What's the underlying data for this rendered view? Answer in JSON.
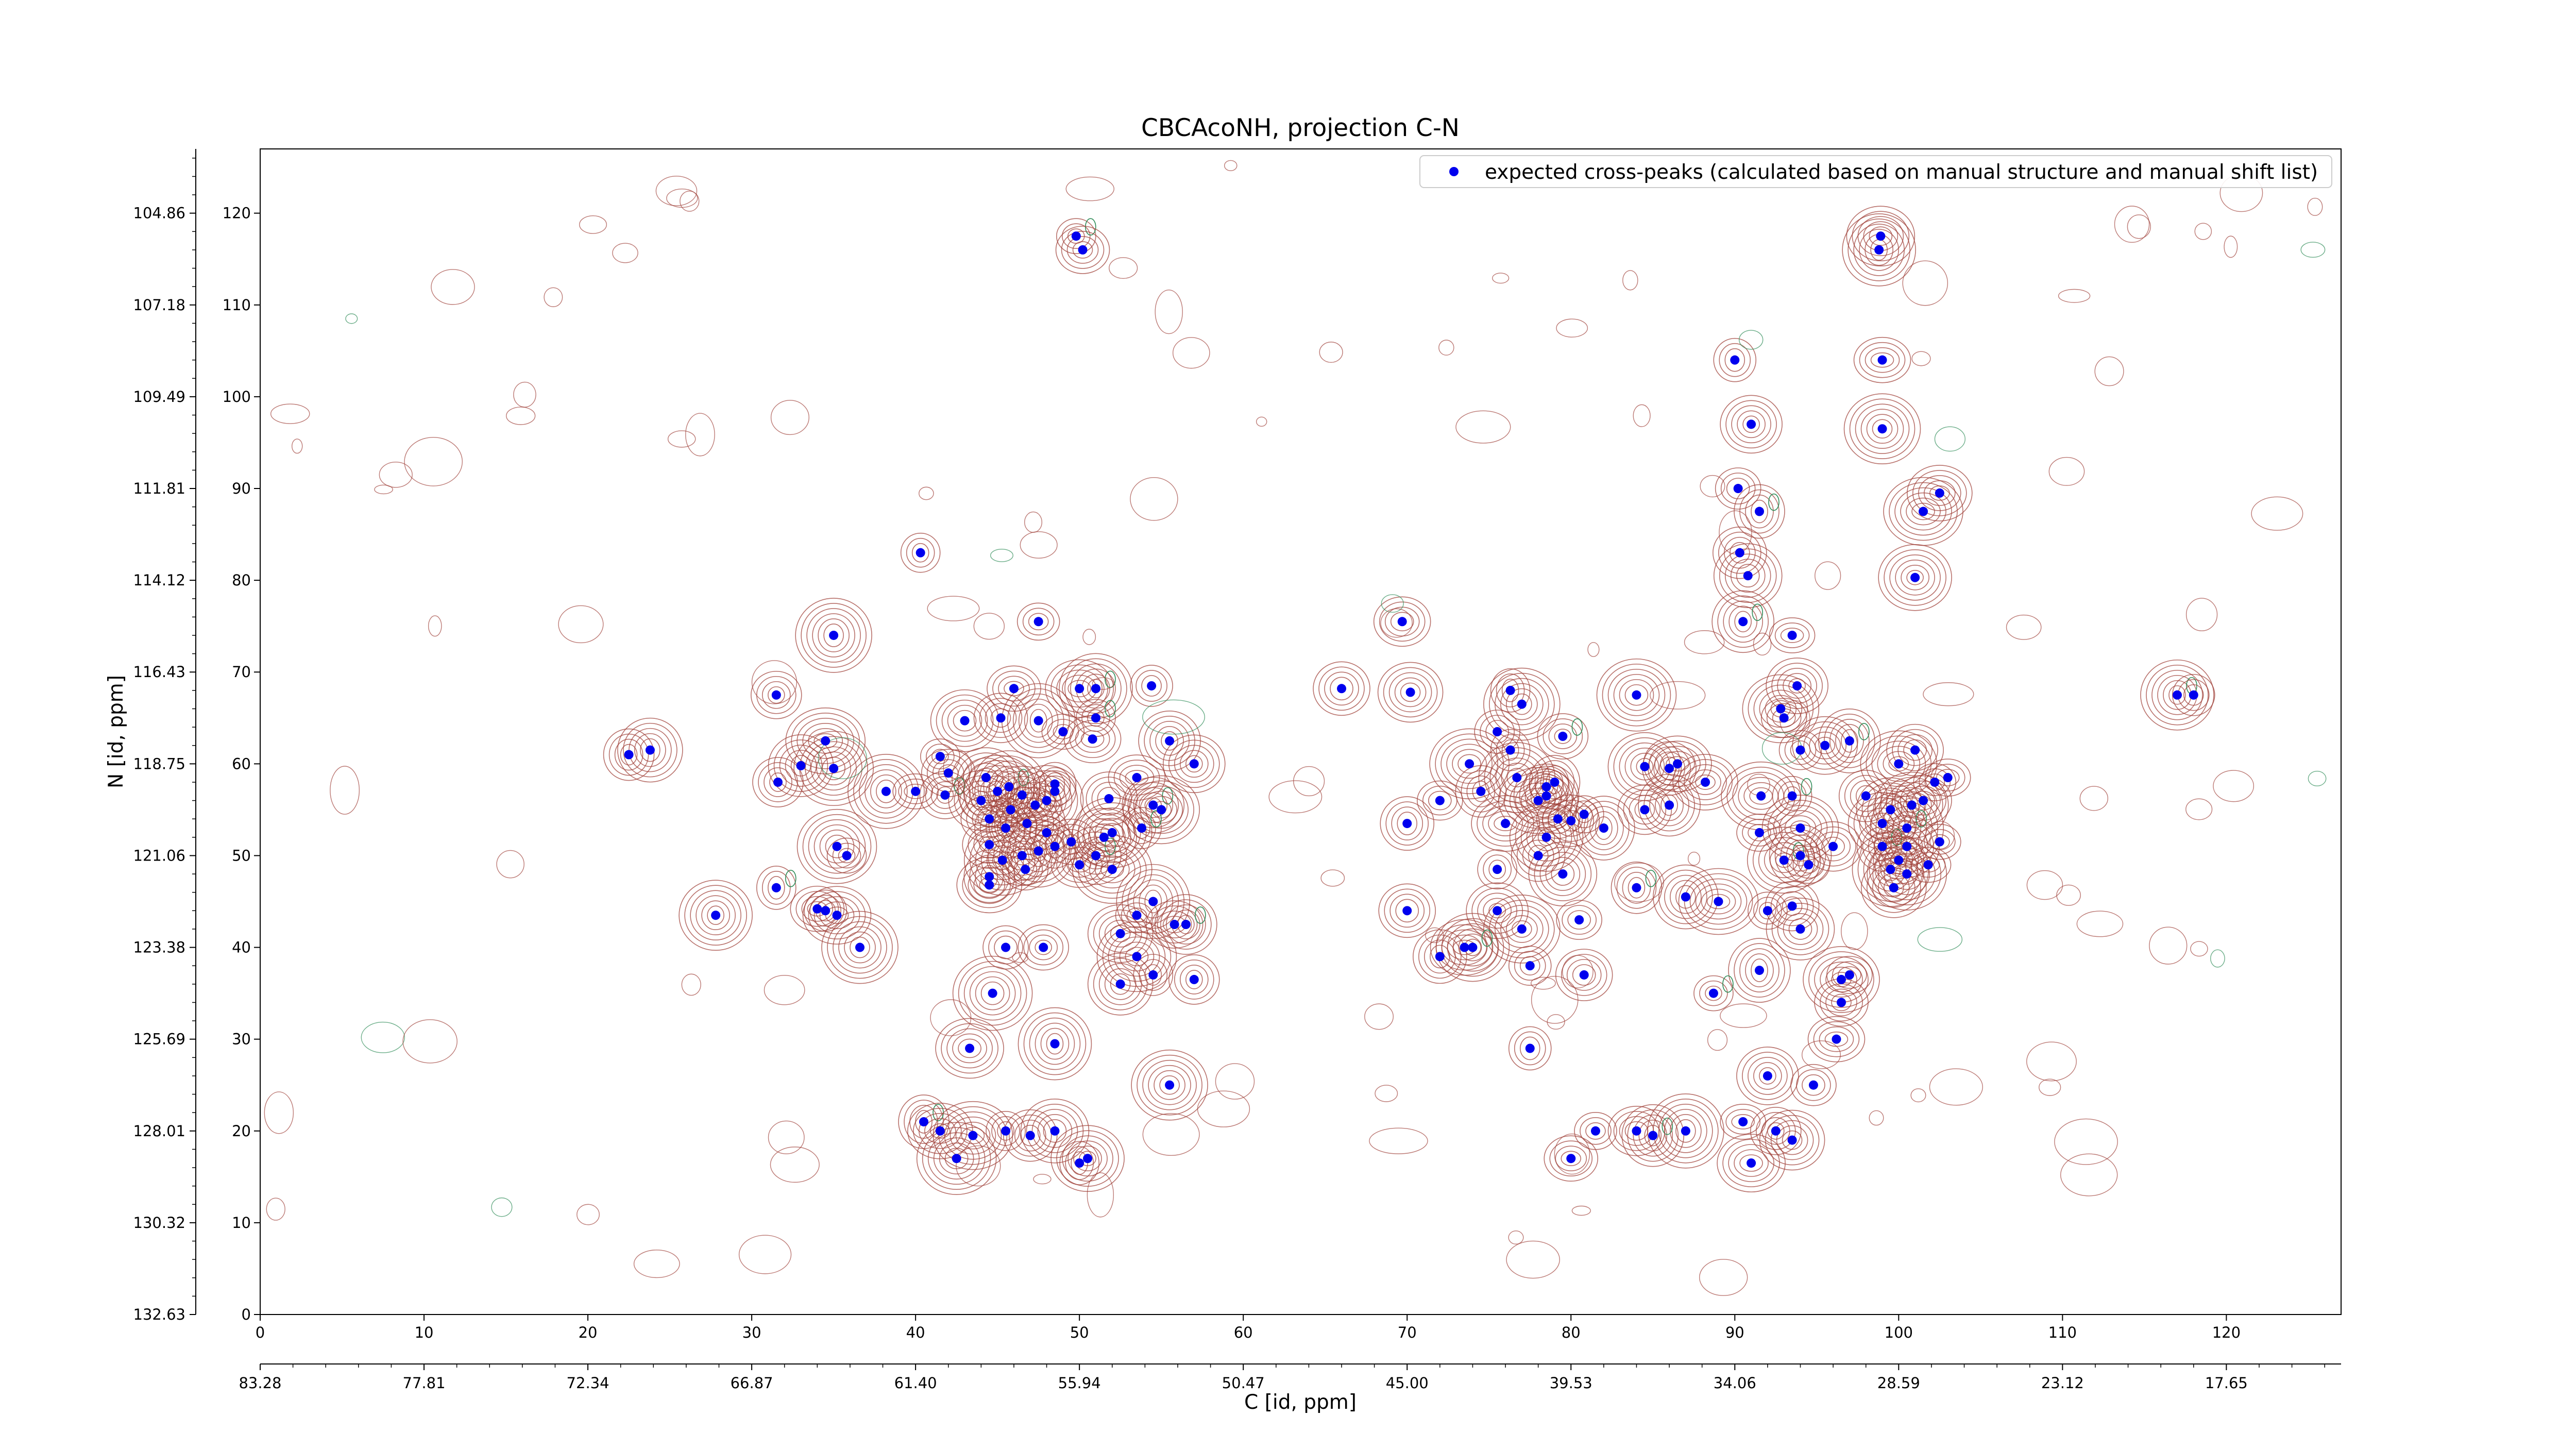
{
  "chart_data": {
    "type": "scatter",
    "title": "CBCAcoNH, projection C-N",
    "xlabel": "C [id, ppm]",
    "ylabel": "N [id, ppm]",
    "xlim": [
      0,
      127
    ],
    "ylim": [
      0,
      127
    ],
    "x_index_ticks": [
      "0",
      "10",
      "20",
      "30",
      "40",
      "50",
      "60",
      "70",
      "80",
      "90",
      "100",
      "110",
      "120"
    ],
    "x_ppm_ticks": [
      "83.28",
      "77.81",
      "72.34",
      "66.87",
      "61.40",
      "55.94",
      "50.47",
      "45.00",
      "39.53",
      "34.06",
      "28.59",
      "23.12",
      "17.65"
    ],
    "y_index_ticks": [
      "0",
      "10",
      "20",
      "30",
      "40",
      "50",
      "60",
      "70",
      "80",
      "90",
      "100",
      "110",
      "120"
    ],
    "y_ppm_ticks": [
      "132.63",
      "130.32",
      "128.01",
      "125.69",
      "123.38",
      "121.06",
      "118.75",
      "116.43",
      "114.12",
      "111.81",
      "109.49",
      "107.18",
      "104.86"
    ],
    "grid": false,
    "legend_position": "top-right",
    "colors": {
      "peaks": "#0000ee",
      "contour_positive": "#a0413a",
      "contour_negative": "#2e8b57",
      "axis": "#000000"
    },
    "series": [
      {
        "name": "expected cross-peaks (calculated based on manual structure and manual shift list)",
        "points": [
          [
            49.8,
            117.5
          ],
          [
            50.2,
            116
          ],
          [
            98.9,
            117.5
          ],
          [
            98.8,
            116
          ],
          [
            90,
            104
          ],
          [
            99,
            104
          ],
          [
            91,
            97
          ],
          [
            99,
            96.5
          ],
          [
            90.2,
            90
          ],
          [
            91.5,
            87.5
          ],
          [
            102.5,
            89.5
          ],
          [
            101.5,
            87.5
          ],
          [
            40.3,
            83
          ],
          [
            90.3,
            83
          ],
          [
            90.8,
            80.5
          ],
          [
            101,
            80.3
          ],
          [
            47.5,
            75.5
          ],
          [
            69.7,
            75.5
          ],
          [
            90.5,
            75.5
          ],
          [
            35,
            74
          ],
          [
            93.5,
            74
          ],
          [
            31.5,
            67.5
          ],
          [
            70.2,
            67.8
          ],
          [
            84,
            67.5
          ],
          [
            76.3,
            68
          ],
          [
            46,
            68.2
          ],
          [
            50,
            68.2
          ],
          [
            51,
            68.2
          ],
          [
            54.4,
            68.5
          ],
          [
            66,
            68.2
          ],
          [
            93.8,
            68.5
          ],
          [
            92.8,
            66
          ],
          [
            93,
            65
          ],
          [
            22.5,
            61
          ],
          [
            23.8,
            61.5
          ],
          [
            34.5,
            62.5
          ],
          [
            51,
            65
          ],
          [
            45.2,
            65
          ],
          [
            43,
            64.7
          ],
          [
            47.5,
            64.7
          ],
          [
            49,
            63.5
          ],
          [
            50.8,
            62.7
          ],
          [
            55.5,
            62.5
          ],
          [
            77,
            66.5
          ],
          [
            75.5,
            63.5
          ],
          [
            79.5,
            63
          ],
          [
            95.5,
            62
          ],
          [
            73.8,
            60
          ],
          [
            76.3,
            61.5
          ],
          [
            86,
            59.5
          ],
          [
            86.5,
            60
          ],
          [
            84.5,
            59.7
          ],
          [
            94,
            61.5
          ],
          [
            101,
            61.5
          ],
          [
            97,
            62.5
          ],
          [
            100,
            60
          ],
          [
            103,
            58.5
          ],
          [
            31.6,
            58
          ],
          [
            33,
            59.8
          ],
          [
            35,
            59.5
          ],
          [
            41.5,
            60.8
          ],
          [
            42,
            59
          ],
          [
            44.3,
            58.5
          ],
          [
            45.7,
            57.5
          ],
          [
            48.5,
            57.8
          ],
          [
            53.5,
            58.5
          ],
          [
            57,
            60
          ],
          [
            76.7,
            58.5
          ],
          [
            78.5,
            57.5
          ],
          [
            79,
            58
          ],
          [
            88.2,
            58
          ],
          [
            91.6,
            56.5
          ],
          [
            93.5,
            56.5
          ],
          [
            98,
            56.5
          ],
          [
            99.5,
            55
          ],
          [
            100.8,
            55.5
          ],
          [
            102.2,
            58
          ],
          [
            101.5,
            56
          ],
          [
            86,
            55.5
          ],
          [
            38.2,
            57
          ],
          [
            40,
            57
          ],
          [
            41.8,
            56.6
          ],
          [
            44,
            56
          ],
          [
            45,
            57
          ],
          [
            45.8,
            55
          ],
          [
            47.3,
            55.5
          ],
          [
            46.5,
            56.6
          ],
          [
            48,
            56
          ],
          [
            48.5,
            57
          ],
          [
            51.8,
            56.2
          ],
          [
            54.5,
            55.5
          ],
          [
            55,
            55
          ],
          [
            72,
            56
          ],
          [
            74.5,
            57
          ],
          [
            78.5,
            56.5
          ],
          [
            78,
            56
          ],
          [
            80.8,
            54.5
          ],
          [
            84.5,
            55
          ],
          [
            99,
            53.5
          ],
          [
            100.5,
            53
          ],
          [
            102.5,
            51.5
          ],
          [
            44.5,
            54
          ],
          [
            45.5,
            53
          ],
          [
            46.8,
            53.5
          ],
          [
            48,
            52.5
          ],
          [
            49.5,
            51.5
          ],
          [
            51.5,
            52
          ],
          [
            52,
            52.5
          ],
          [
            53.8,
            53
          ],
          [
            70,
            53.5
          ],
          [
            76,
            53.5
          ],
          [
            78.5,
            52
          ],
          [
            79.2,
            54
          ],
          [
            80,
            53.8
          ],
          [
            82,
            53
          ],
          [
            94,
            53
          ],
          [
            91.5,
            52.5
          ],
          [
            99,
            51
          ],
          [
            100.5,
            51
          ],
          [
            35.2,
            51
          ],
          [
            35.8,
            50
          ],
          [
            44.5,
            51.2
          ],
          [
            46.5,
            50
          ],
          [
            47.5,
            50.5
          ],
          [
            48.5,
            51
          ],
          [
            50,
            49
          ],
          [
            51,
            50
          ],
          [
            45.3,
            49.5
          ],
          [
            46.7,
            48.5
          ],
          [
            44.5,
            47.7
          ],
          [
            44.5,
            46.8
          ],
          [
            52,
            48.5
          ],
          [
            75.5,
            48.5
          ],
          [
            78,
            50
          ],
          [
            79.5,
            48
          ],
          [
            93,
            49.5
          ],
          [
            94.5,
            49
          ],
          [
            96,
            51
          ],
          [
            94,
            50
          ],
          [
            99.5,
            48.5
          ],
          [
            101.8,
            49
          ],
          [
            100,
            49.5
          ],
          [
            99.7,
            46.5
          ],
          [
            100.5,
            48
          ],
          [
            31.5,
            46.5
          ],
          [
            34,
            44.2
          ],
          [
            35.2,
            43.5
          ],
          [
            27.8,
            43.5
          ],
          [
            34.5,
            44
          ],
          [
            70,
            44
          ],
          [
            75.5,
            44
          ],
          [
            77,
            42
          ],
          [
            80.5,
            43
          ],
          [
            84,
            46.5
          ],
          [
            87,
            45.5
          ],
          [
            89,
            45
          ],
          [
            92,
            44
          ],
          [
            93.5,
            44.5
          ],
          [
            94,
            42
          ],
          [
            54.5,
            45
          ],
          [
            53.5,
            43.5
          ],
          [
            55.8,
            42.5
          ],
          [
            56.5,
            42.5
          ],
          [
            36.6,
            40
          ],
          [
            45.5,
            40
          ],
          [
            47.8,
            40
          ],
          [
            52.5,
            41.5
          ],
          [
            53.5,
            39
          ],
          [
            54.5,
            37
          ],
          [
            72,
            39
          ],
          [
            73.5,
            40
          ],
          [
            74,
            40
          ],
          [
            77.5,
            38
          ],
          [
            80.8,
            37
          ],
          [
            91.5,
            37.5
          ],
          [
            96.5,
            36.5
          ],
          [
            97,
            37
          ],
          [
            57,
            36.5
          ],
          [
            52.5,
            36
          ],
          [
            44.7,
            35
          ],
          [
            88.7,
            35
          ],
          [
            96.5,
            34
          ],
          [
            43.3,
            29
          ],
          [
            48.5,
            29.5
          ],
          [
            77.5,
            29
          ],
          [
            96.2,
            30
          ],
          [
            92,
            26
          ],
          [
            55.5,
            25
          ],
          [
            94.8,
            25
          ],
          [
            40.5,
            21
          ],
          [
            41.5,
            20
          ],
          [
            43.5,
            19.5
          ],
          [
            45.5,
            20
          ],
          [
            47,
            19.5
          ],
          [
            48.5,
            20
          ],
          [
            50.5,
            17
          ],
          [
            81.5,
            20
          ],
          [
            84,
            20
          ],
          [
            85,
            19.5
          ],
          [
            87,
            20
          ],
          [
            90.5,
            21
          ],
          [
            92.5,
            20
          ],
          [
            93.5,
            19
          ],
          [
            42.5,
            17
          ],
          [
            50,
            16.5
          ],
          [
            80,
            17
          ],
          [
            91,
            16.5
          ],
          [
            117,
            67.5
          ],
          [
            118,
            67.5
          ]
        ]
      }
    ]
  }
}
